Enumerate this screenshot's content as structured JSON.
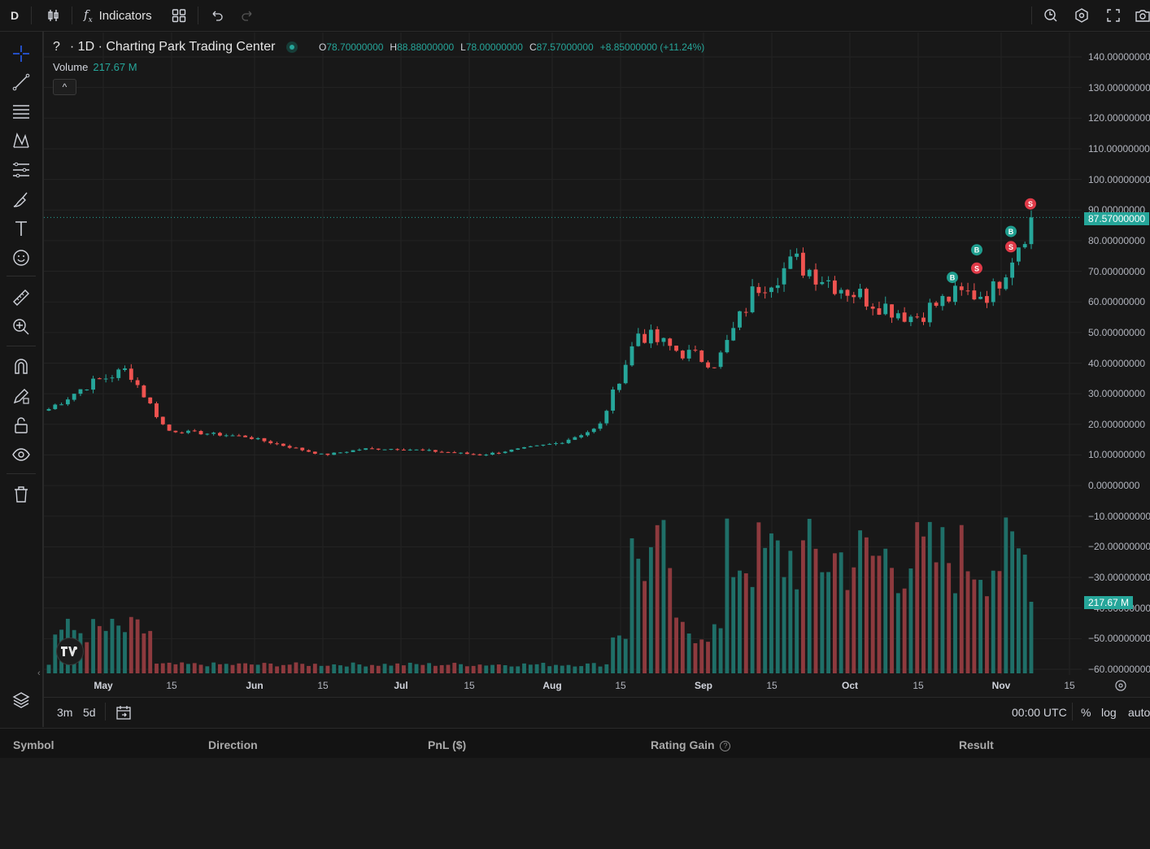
{
  "topbar": {
    "symbol_button": "D",
    "indicators_label": "Indicators"
  },
  "legend": {
    "symbol": "?",
    "title": "· 1D · Charting Park Trading Center",
    "ohlc": {
      "o_label": "O",
      "o": "78.70000000",
      "h_label": "H",
      "h": "88.88000000",
      "l_label": "L",
      "l": "78.00000000",
      "c_label": "C",
      "c": "87.57000000",
      "change": "+8.85000000 (+11.24%)"
    },
    "volume_label": "Volume",
    "volume_value": "217.67 M",
    "collapse_icon": "^"
  },
  "price_scale": {
    "labels": [
      "140.00000000",
      "130.00000000",
      "120.00000000",
      "110.00000000",
      "100.00000000",
      "90.00000000",
      "80.00000000",
      "70.00000000",
      "60.00000000",
      "50.00000000",
      "40.00000000",
      "30.00000000",
      "20.00000000",
      "10.00000000",
      "0.00000000",
      "−10.00000000",
      "−20.00000000",
      "−30.00000000",
      "−40.00000000",
      "−50.00000000",
      "−60.00000000"
    ],
    "last_price": "87.57000000",
    "volume_tag": "217.67 M"
  },
  "time_axis": {
    "labels": [
      "May",
      "15",
      "Jun",
      "15",
      "Jul",
      "15",
      "Aug",
      "15",
      "Sep",
      "15",
      "Oct",
      "15",
      "Nov",
      "15"
    ]
  },
  "bottom_bar": {
    "range_3m": "3m",
    "range_5d": "5d",
    "timezone": "00:00 UTC",
    "percent": "%",
    "log": "log",
    "auto": "auto"
  },
  "panel": {
    "columns": [
      "Symbol",
      "Direction",
      "PnL ($)",
      "Rating Gain",
      "Result"
    ]
  },
  "colors": {
    "up": "#26a69a",
    "down": "#ef5350",
    "volume_up": "#1f6f68",
    "volume_down": "#8e3a3e",
    "background": "#181818"
  },
  "chart_data": {
    "type": "candlestick",
    "title": "· 1D · Charting Park Trading Center",
    "timeframe": "1D",
    "ylim": [
      -60,
      140
    ],
    "x_range": [
      "Apr 28",
      "Nov 18"
    ],
    "last_close": 87.57,
    "volume_last": "217.67 M",
    "weekly_close": [
      {
        "week": "May 1",
        "close": 25
      },
      {
        "week": "May 8",
        "close": 33
      },
      {
        "week": "May 15",
        "close": 38
      },
      {
        "week": "May 22",
        "close": 18
      },
      {
        "week": "Jun 1",
        "close": 17
      },
      {
        "week": "Jun 8",
        "close": 16
      },
      {
        "week": "Jun 15",
        "close": 13
      },
      {
        "week": "Jun 22",
        "close": 10
      },
      {
        "week": "Jul 1",
        "close": 12
      },
      {
        "week": "Jul 8",
        "close": 12
      },
      {
        "week": "Jul 15",
        "close": 11
      },
      {
        "week": "Jul 22",
        "close": 10
      },
      {
        "week": "Aug 1",
        "close": 12
      },
      {
        "week": "Aug 8",
        "close": 14
      },
      {
        "week": "Aug 15",
        "close": 19
      },
      {
        "week": "Aug 22",
        "close": 50
      },
      {
        "week": "Sep 1",
        "close": 44
      },
      {
        "week": "Sep 8",
        "close": 40
      },
      {
        "week": "Sep 15",
        "close": 65
      },
      {
        "week": "Sep 22",
        "close": 73
      },
      {
        "week": "Oct 1",
        "close": 66
      },
      {
        "week": "Oct 8",
        "close": 60
      },
      {
        "week": "Oct 15",
        "close": 55
      },
      {
        "week": "Oct 22",
        "close": 62
      },
      {
        "week": "Nov 1",
        "close": 63
      },
      {
        "week": "Nov 6",
        "close": 87.57
      }
    ],
    "trade_markers": [
      {
        "label": "B",
        "date": "Oct 24",
        "price": 68
      },
      {
        "label": "S",
        "date": "Oct 28",
        "price": 71
      },
      {
        "label": "B",
        "date": "Oct 28",
        "price": 77
      },
      {
        "label": "S",
        "date": "Nov 3",
        "price": 78
      },
      {
        "label": "B",
        "date": "Nov 3",
        "price": 83
      },
      {
        "label": "S",
        "date": "Nov 7",
        "price": 92
      }
    ]
  }
}
